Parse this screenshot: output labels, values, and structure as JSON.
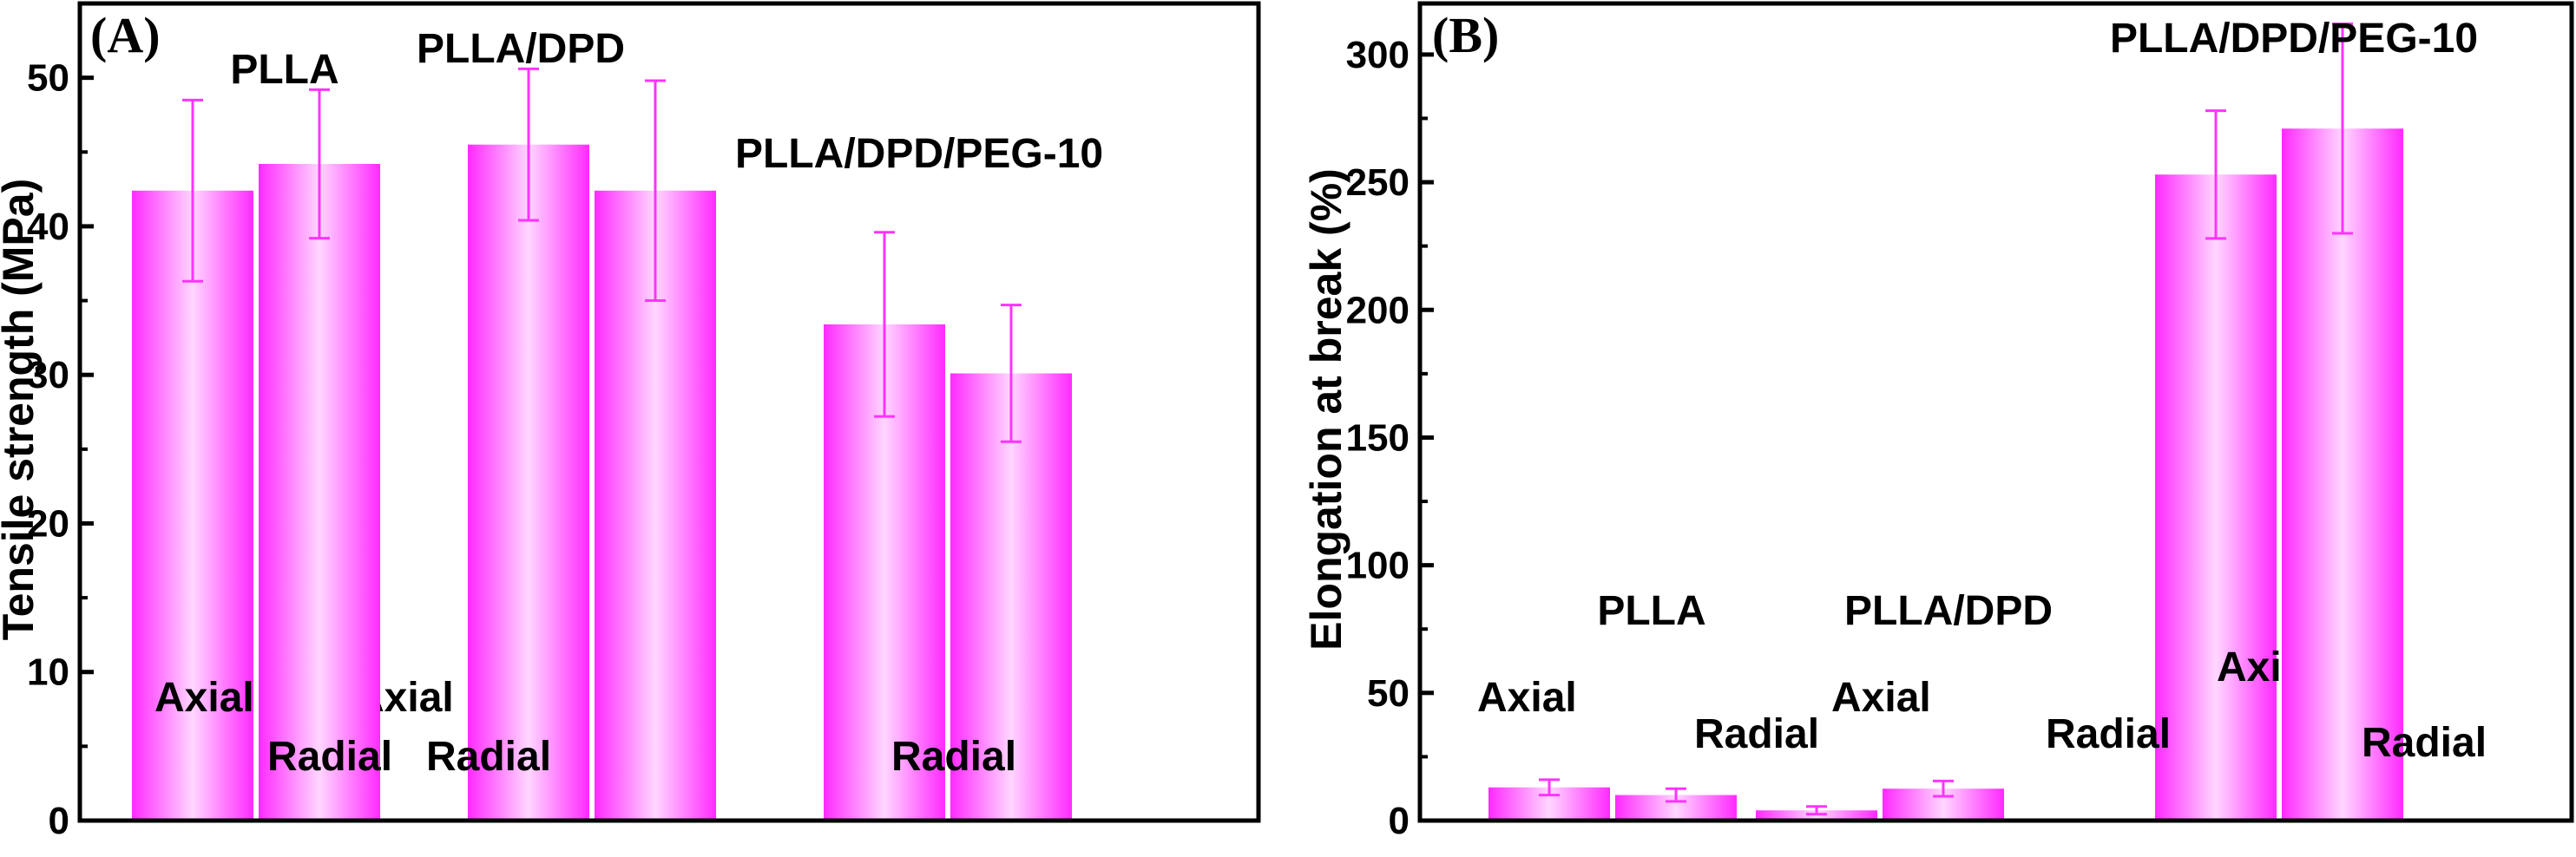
{
  "chart_data": [
    {
      "type": "bar",
      "panel_label": "(A)",
      "ylabel": "Tensile strength (MPa)",
      "ylim": [
        0,
        55
      ],
      "yticks": [
        0,
        10,
        20,
        30,
        40,
        50
      ],
      "grid": false,
      "color": "#ff33ff",
      "categories": [
        "PLLA",
        "PLLA/DPD",
        "PLLA/DPD/PEG-10"
      ],
      "group_labels": [
        "PLLA",
        "PLLA/DPD",
        "PLLA/DPD/PEG-10"
      ],
      "series": [
        {
          "name": "Axial",
          "label": "Axial",
          "values": [
            42.4,
            45.5,
            33.4
          ],
          "errors": [
            6.1,
            5.1,
            6.2
          ]
        },
        {
          "name": "Radial",
          "label": "Radial",
          "values": [
            44.2,
            42.4,
            30.1
          ],
          "errors": [
            5.0,
            7.4,
            4.6
          ]
        }
      ]
    },
    {
      "type": "bar",
      "panel_label": "(B)",
      "ylabel": "Elongation at break (%)",
      "ylim": [
        0,
        320
      ],
      "yticks": [
        0,
        50,
        100,
        150,
        200,
        250,
        300
      ],
      "grid": false,
      "color": "#ff33ff",
      "categories": [
        "PLLA",
        "PLLA/DPD",
        "PLLA/DPD/PEG-10"
      ],
      "group_labels": [
        "PLLA",
        "PLLA/DPD",
        "PLLA/DPD/PEG-10"
      ],
      "series": [
        {
          "name": "Axial",
          "label": "Axial",
          "values": [
            13,
            4,
            253
          ],
          "errors": [
            3,
            1.5,
            25
          ]
        },
        {
          "name": "Radial",
          "label": "Radial",
          "values": [
            10,
            12.5,
            271
          ],
          "errors": [
            2.5,
            3,
            41
          ]
        }
      ]
    }
  ]
}
